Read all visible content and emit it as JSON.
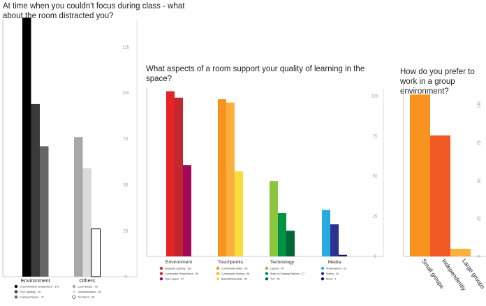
{
  "chart_data": [
    {
      "type": "bar",
      "title": "At time when you couldn't focus during class - what about the room distracted you?",
      "ylim": [
        0,
        140
      ],
      "yticks": [
        0,
        25,
        50,
        75,
        100,
        125
      ],
      "grid": false,
      "groups": [
        {
          "name": "Environment",
          "bars": [
            {
              "label": "Uncomfortable Temperature - 141",
              "value": 141,
              "color": "#000000"
            },
            {
              "label": "Poor Lighting - 94",
              "value": 94,
              "color": "#3a3a3a"
            },
            {
              "label": "Cramped Space - 71",
              "value": 71,
              "color": "#666666"
            }
          ]
        },
        {
          "name": "Others",
          "bars": [
            {
              "label": "Loud Noises - 76",
              "value": 76,
              "color": "#a8a8a8"
            },
            {
              "label": "Overstimulation - 59",
              "value": 59,
              "color": "#dadada"
            },
            {
              "label": "Too Silent - 26",
              "value": 26,
              "color": "#ffffff",
              "stroke": "#000000"
            }
          ]
        }
      ]
    },
    {
      "type": "bar",
      "title": "What aspects of a room support your quality of learning in the space?",
      "ylim": [
        0,
        105
      ],
      "yticks": [
        0,
        25,
        50,
        75,
        100
      ],
      "grid": false,
      "groups": [
        {
          "name": "Environment",
          "bars": [
            {
              "label": "Adequate Lighting - 103",
              "value": 103,
              "color": "#e52427"
            },
            {
              "label": "Comfortable Temperature - 99",
              "value": 99,
              "color": "#c1272d"
            },
            {
              "label": "Open Space - 57",
              "value": 57,
              "color": "#a1085a"
            }
          ]
        },
        {
          "name": "Touchpoints",
          "bars": [
            {
              "label": "Comfortable tables - 98",
              "value": 98,
              "color": "#f7931e"
            },
            {
              "label": "Comfortable Seating - 96",
              "value": 96,
              "color": "#fbb03b"
            },
            {
              "label": "Black/Whiteboards - 53",
              "value": 53,
              "color": "#f7dc3a"
            }
          ]
        },
        {
          "name": "Technology",
          "bars": [
            {
              "label": "Laptops - 47",
              "value": 47,
              "color": "#8cc63f"
            },
            {
              "label": "iPads & Charging Stations - 27",
              "value": 27,
              "color": "#009245"
            },
            {
              "label": "TVs - 16",
              "value": 16,
              "color": "#006837"
            }
          ]
        },
        {
          "name": "Media",
          "bars": [
            {
              "label": "Presentations - 29",
              "value": 29,
              "color": "#29abe2"
            },
            {
              "label": "Videos - 20",
              "value": 20,
              "color": "#2e3192"
            },
            {
              "label": "Music - 1",
              "value": 1,
              "color": "#1b1464"
            }
          ]
        }
      ]
    },
    {
      "type": "bar",
      "title": "How do you prefer to work in a group environment?",
      "ylim": [
        0,
        115
      ],
      "yticks": [
        0,
        25,
        50,
        75,
        100
      ],
      "grid": false,
      "categories": [
        "Small groups",
        "Independently",
        "Large groups"
      ],
      "values": [
        107,
        80,
        5
      ],
      "colors": [
        "#f7931e",
        "#f15a24",
        "#fbb03b"
      ]
    }
  ]
}
